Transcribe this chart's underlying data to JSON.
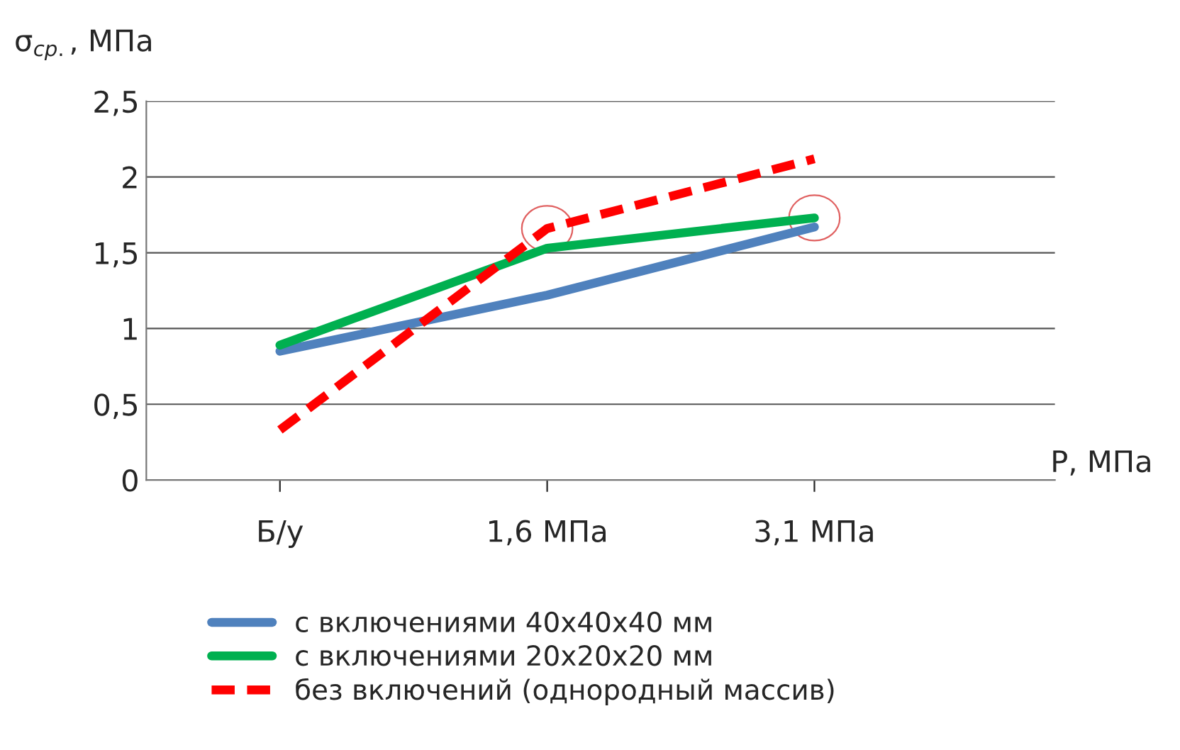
{
  "chart_data": {
    "type": "line",
    "xlabel": "P, МПа",
    "ylabel": "σ$_{ср.}$, МПа",
    "categories": [
      "Б/у",
      "1,6 МПа",
      "3,1 МПа"
    ],
    "series": [
      {
        "name": "с включениями 40х40х40 мм",
        "color": "#4f81bd",
        "values": [
          0.85,
          1.22,
          1.67
        ],
        "line_style": "solid"
      },
      {
        "name": "с включениями 20х20х20 мм",
        "color": "#00b050",
        "values": [
          0.89,
          1.53,
          1.73
        ],
        "line_style": "solid"
      },
      {
        "name": "без включений (однородный массив)",
        "color": "#ff0000",
        "values": [
          0.33,
          1.66,
          2.12
        ],
        "line_style": "dashed"
      }
    ],
    "ylim": [
      0,
      2.5
    ],
    "yticks": [
      0,
      {
        "value": 0.5,
        "label": "0,5"
      },
      1,
      {
        "value": 1.5,
        "label": "1,5"
      },
      2,
      {
        "value": 2.5,
        "label": "2,5"
      }
    ],
    "grid": "y",
    "legend": "bottom",
    "marker": "none"
  }
}
